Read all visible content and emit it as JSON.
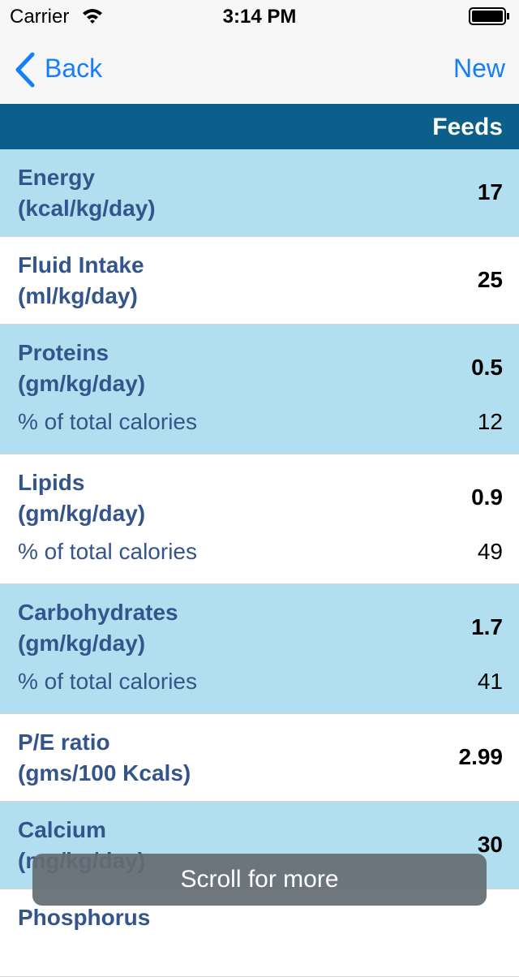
{
  "status_bar": {
    "carrier": "Carrier",
    "time": "3:14 PM"
  },
  "nav": {
    "back": "Back",
    "new": "New"
  },
  "header": {
    "title": "Feeds"
  },
  "rows": [
    {
      "name": "Energy",
      "unit": "(kcal/kg/day)",
      "value": "17"
    },
    {
      "name": "Fluid Intake",
      "unit": "(ml/kg/day)",
      "value": "25"
    },
    {
      "name": "Proteins",
      "unit": "(gm/kg/day)",
      "value": "0.5",
      "sub_label": "% of total calories",
      "sub_value": "12"
    },
    {
      "name": "Lipids",
      "unit": "(gm/kg/day)",
      "value": "0.9",
      "sub_label": "% of total calories",
      "sub_value": "49"
    },
    {
      "name": "Carbohydrates",
      "unit": "(gm/kg/day)",
      "value": "1.7",
      "sub_label": "% of total calories",
      "sub_value": "41"
    },
    {
      "name": "P/E ratio",
      "unit": "(gms/100 Kcals)",
      "value": "2.99"
    },
    {
      "name": "Calcium",
      "unit": "(mg/kg/day)",
      "value": "30"
    },
    {
      "name": "Phosphorus"
    }
  ],
  "toast": "Scroll for more"
}
